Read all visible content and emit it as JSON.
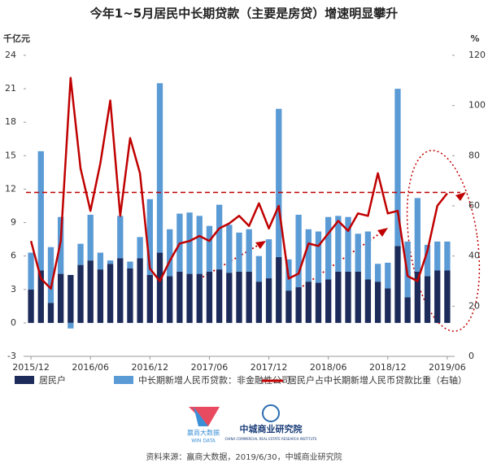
{
  "chart_data": {
    "type": "bar",
    "title": "今年1~5月居民中长期贷款（主要是房贷）增速明显攀升",
    "y_unit": "千亿元",
    "y2_unit": "%",
    "categories": [
      "2015/12",
      null,
      null,
      null,
      null,
      null,
      "2016/06",
      null,
      null,
      null,
      null,
      null,
      "2016/12",
      null,
      null,
      null,
      null,
      null,
      "2017/06",
      null,
      null,
      null,
      null,
      null,
      "2017/12",
      null,
      null,
      null,
      null,
      null,
      "2018/06",
      null,
      null,
      null,
      null,
      null,
      "2018/12",
      null,
      null,
      null,
      null,
      null,
      "2019/06"
    ],
    "ylim": [
      -3,
      24
    ],
    "yticks": [
      -3,
      0,
      3,
      6,
      9,
      12,
      15,
      18,
      21,
      24
    ],
    "y2lim": [
      0,
      120
    ],
    "y2ticks": [
      0,
      20,
      40,
      60,
      80,
      100,
      120
    ],
    "stacked": true,
    "series": [
      {
        "name": "居民户",
        "color": "#1c2b5a",
        "values": [
          3.0,
          4.7,
          1.8,
          4.4,
          4.3,
          5.2,
          5.6,
          4.8,
          5.3,
          5.8,
          4.9,
          5.8,
          4.3,
          6.3,
          4.2,
          4.6,
          4.4,
          4.4,
          4.6,
          4.8,
          4.5,
          4.6,
          4.6,
          3.7,
          4.0,
          5.9,
          2.9,
          3.2,
          3.7,
          3.6,
          3.9,
          4.6,
          4.6,
          4.6,
          3.9,
          3.7,
          3.1,
          6.9,
          2.3,
          4.6,
          4.2,
          4.7,
          4.7
        ]
      },
      {
        "name": "中长期新增人民币贷款：非金融性公司",
        "color": "#5b9bd5",
        "values": [
          3.3,
          10.7,
          5.0,
          5.1,
          -0.5,
          1.9,
          4.1,
          1.5,
          0.3,
          3.8,
          0.6,
          1.9,
          6.8,
          15.2,
          4.2,
          5.2,
          5.5,
          5.2,
          4.1,
          5.8,
          4.3,
          3.5,
          3.8,
          2.3,
          3.5,
          13.3,
          2.8,
          6.5,
          4.7,
          4.6,
          5.6,
          5.0,
          4.9,
          3.4,
          4.3,
          1.6,
          2.3,
          14.1,
          5.0,
          6.6,
          2.8,
          2.6,
          2.6
        ]
      },
      {
        "name": "居民户占中长期新增人民币贷款比重（右轴）",
        "color": "#c00000",
        "type": "line",
        "axis": "y2",
        "values": [
          46,
          31,
          27,
          46,
          111,
          75,
          58,
          77,
          102,
          56,
          87,
          73,
          35,
          30,
          38,
          45,
          46,
          48,
          46,
          51,
          53,
          56,
          52,
          61,
          51,
          60,
          31,
          33,
          45,
          44,
          49,
          54,
          50,
          57,
          56,
          73,
          57,
          58,
          32,
          30,
          42,
          60,
          65
        ]
      }
    ],
    "reference_line": {
      "value": 11.7,
      "color": "#c00000",
      "style": "dashed"
    },
    "source": "资料来源：赢商大数据，2019/6/30，中城商业研究院"
  },
  "logos": {
    "winshang": "赢商大数据",
    "winshang_en": "WIN DATA",
    "institute": "中城商业研究院",
    "institute_en": "CHINA COMMERCIAL REAL ESTATE RESEARCH INSTITUTE"
  }
}
